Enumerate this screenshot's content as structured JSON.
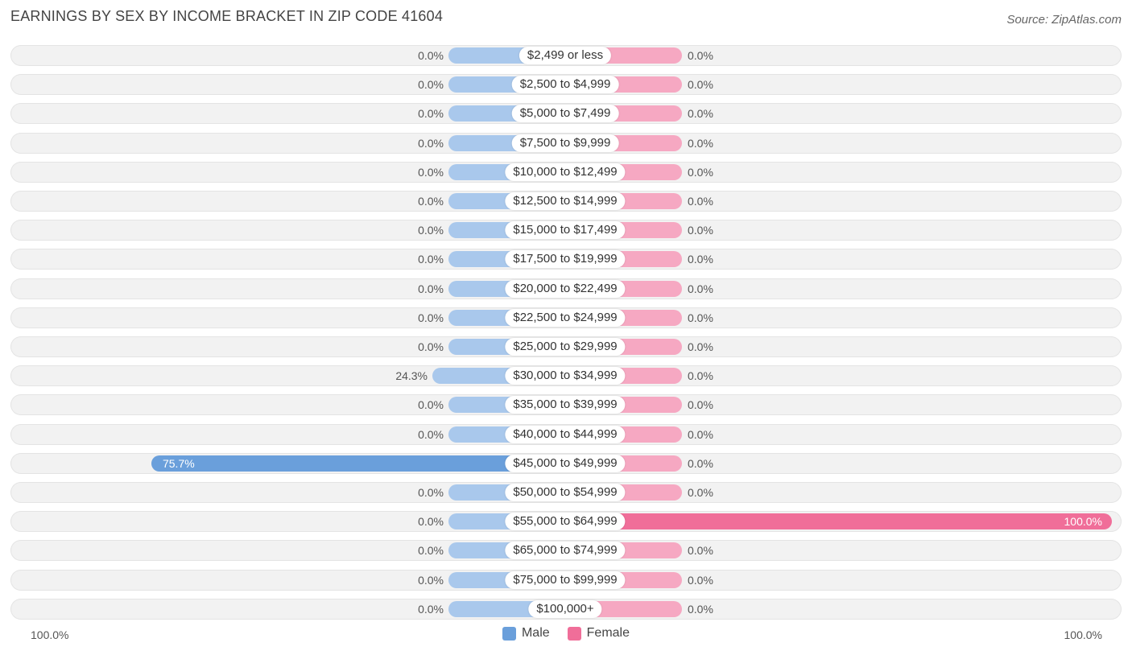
{
  "header": {
    "title": "EARNINGS BY SEX BY INCOME BRACKET IN ZIP CODE 41604",
    "source": "Source: ZipAtlas.com"
  },
  "axis": {
    "left_label": "100.0%",
    "right_label": "100.0%"
  },
  "legend": {
    "male_label": "Male",
    "female_label": "Female"
  },
  "colors": {
    "male": "#6a9fdb",
    "male_light": "#a9c8ec",
    "female": "#f06e99",
    "female_light": "#f6a8c2"
  },
  "chart_data": {
    "type": "bar",
    "title": "EARNINGS BY SEX BY INCOME BRACKET IN ZIP CODE 41604",
    "orientation": "horizontal-diverging",
    "categories": [
      "$2,499 or less",
      "$2,500 to $4,999",
      "$5,000 to $7,499",
      "$7,500 to $9,999",
      "$10,000 to $12,499",
      "$12,500 to $14,999",
      "$15,000 to $17,499",
      "$17,500 to $19,999",
      "$20,000 to $22,499",
      "$22,500 to $24,999",
      "$25,000 to $29,999",
      "$30,000 to $34,999",
      "$35,000 to $39,999",
      "$40,000 to $44,999",
      "$45,000 to $49,999",
      "$50,000 to $54,999",
      "$55,000 to $64,999",
      "$65,000 to $74,999",
      "$75,000 to $99,999",
      "$100,000+"
    ],
    "series": [
      {
        "name": "Male",
        "values": [
          0,
          0,
          0,
          0,
          0,
          0,
          0,
          0,
          0,
          0,
          0,
          24.3,
          0,
          0,
          75.7,
          0,
          0,
          0,
          0,
          0
        ],
        "labels": [
          "0.0%",
          "0.0%",
          "0.0%",
          "0.0%",
          "0.0%",
          "0.0%",
          "0.0%",
          "0.0%",
          "0.0%",
          "0.0%",
          "0.0%",
          "24.3%",
          "0.0%",
          "0.0%",
          "75.7%",
          "0.0%",
          "0.0%",
          "0.0%",
          "0.0%",
          "0.0%"
        ]
      },
      {
        "name": "Female",
        "values": [
          0,
          0,
          0,
          0,
          0,
          0,
          0,
          0,
          0,
          0,
          0,
          0,
          0,
          0,
          0,
          0,
          100,
          0,
          0,
          0
        ],
        "labels": [
          "0.0%",
          "0.0%",
          "0.0%",
          "0.0%",
          "0.0%",
          "0.0%",
          "0.0%",
          "0.0%",
          "0.0%",
          "0.0%",
          "0.0%",
          "0.0%",
          "0.0%",
          "0.0%",
          "0.0%",
          "0.0%",
          "100.0%",
          "0.0%",
          "0.0%",
          "0.0%"
        ]
      }
    ],
    "xlim": [
      0,
      100
    ],
    "unit": "%",
    "legend_position": "bottom-center",
    "grid": false
  }
}
